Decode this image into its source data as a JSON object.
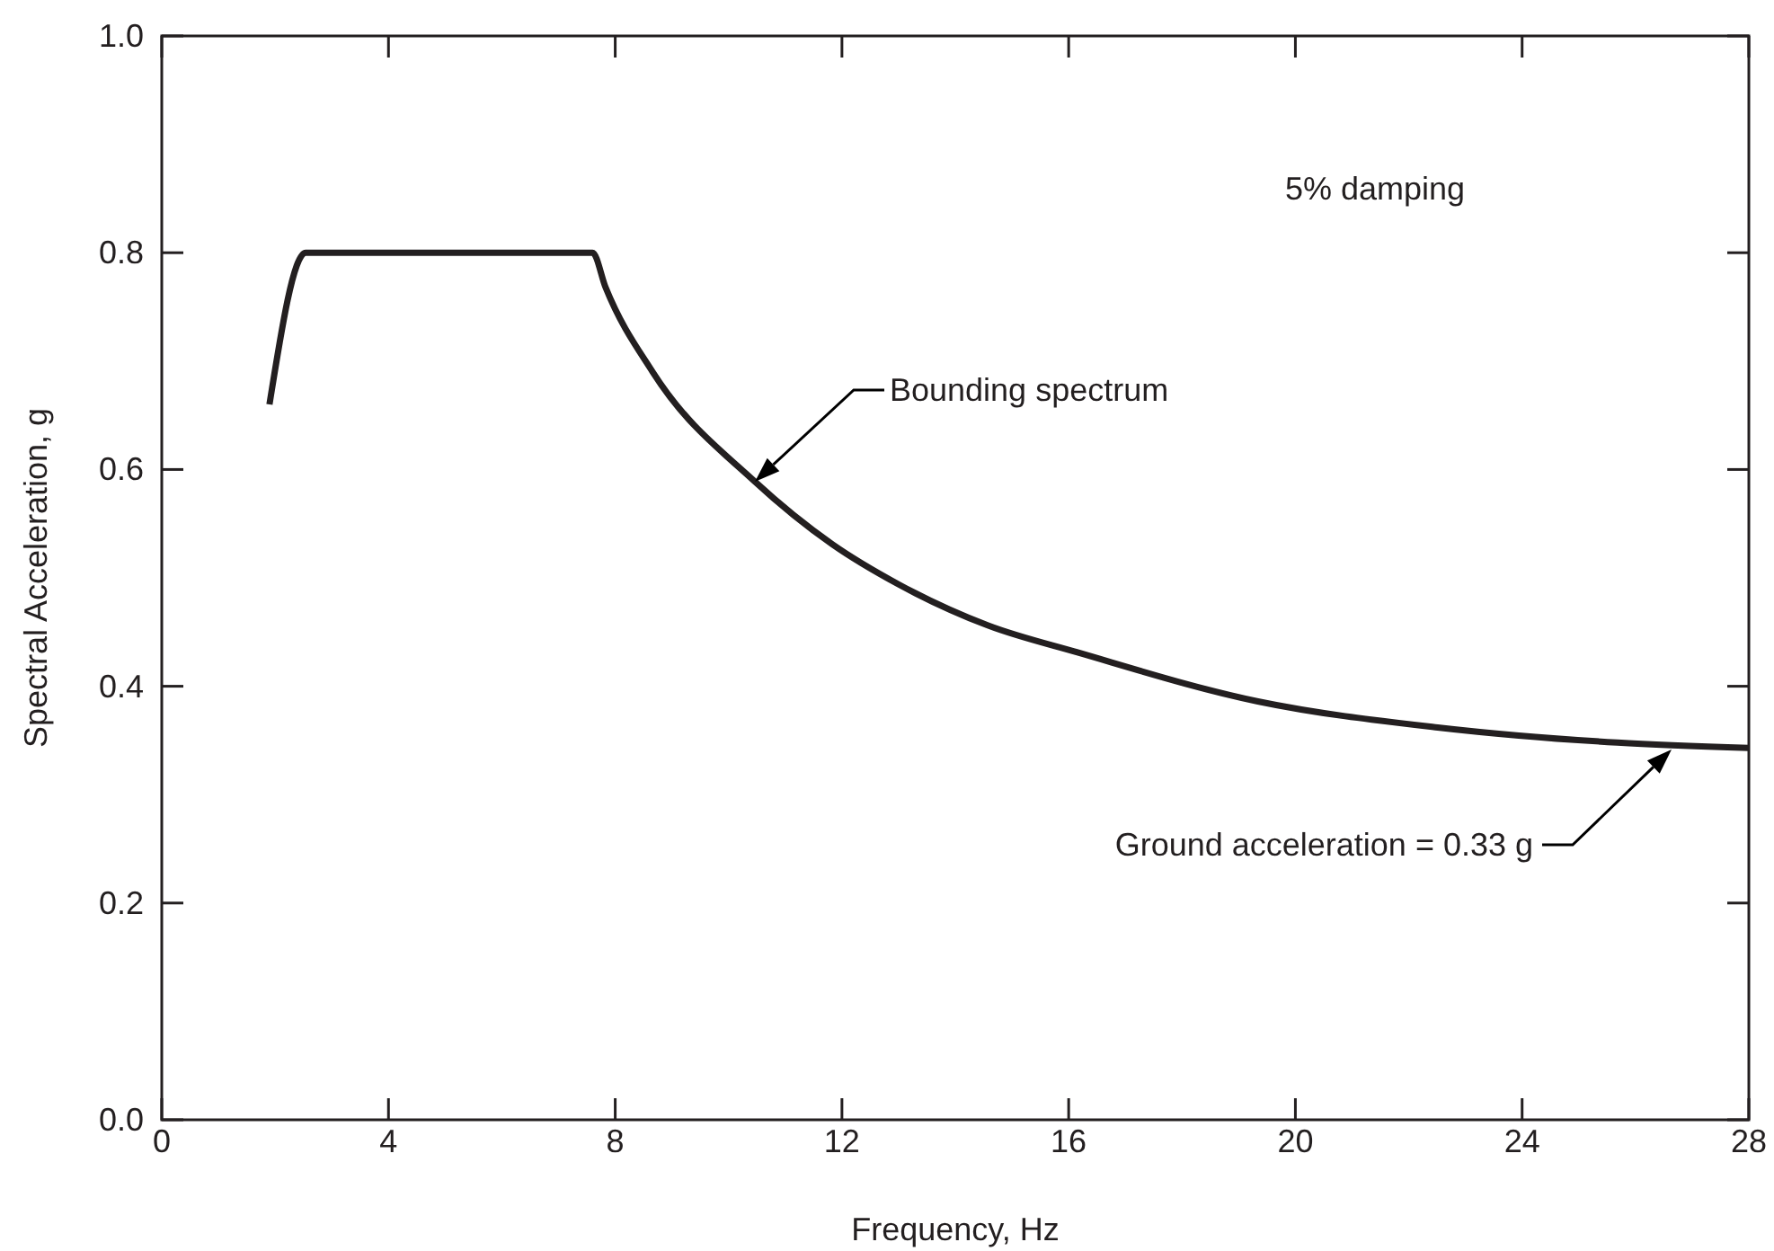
{
  "chart_data": {
    "type": "line",
    "xlabel": "Frequency, Hz",
    "ylabel": "Spectral Acceleration, g",
    "series": [
      {
        "color": "#231f20",
        "x": [
          1.9,
          2.54,
          7.6,
          7.83,
          8.66,
          10.46,
          11.83,
          13.0,
          14.58,
          16.17,
          19.34,
          22.51,
          25.68,
          28.0
        ],
        "values": [
          0.66,
          0.8,
          0.8,
          0.768,
          0.69,
          0.589,
          0.531,
          0.494,
          0.456,
          0.431,
          0.386,
          0.362,
          0.348,
          0.343
        ]
      }
    ],
    "xlim": [
      0,
      28
    ],
    "xticks": [
      0,
      4,
      8,
      12,
      16,
      20,
      24,
      28
    ],
    "ylim": [
      0,
      1
    ],
    "yticks": [
      {
        "value": 0,
        "label": "0.0"
      },
      {
        "value": 0.2,
        "label": "0.2"
      },
      {
        "value": 0.4,
        "label": "0.4"
      },
      {
        "value": 0.6,
        "label": "0.6"
      },
      {
        "value": 0.8,
        "label": "0.8"
      },
      {
        "value": 1,
        "label": "1.0"
      }
    ],
    "grid": false,
    "marker": "none",
    "line_style": "solid",
    "annotations": [
      "5% damping",
      "Bounding spectrum",
      "Ground acceleration = 0.33 g"
    ]
  }
}
